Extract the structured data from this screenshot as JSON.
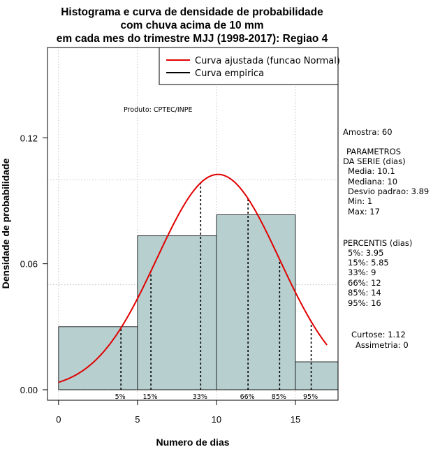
{
  "chart_data": {
    "type": "bar",
    "title_lines": [
      "Histograma e curva de densidade de probabilidade",
      "com chuva acima de 10 mm",
      "em cada mes do trimestre MJJ (1998-2017): Regiao 4"
    ],
    "xlabel": "Numero de dias",
    "ylabel": "Densidade de probabilidade",
    "xlim": [
      -0.7,
      17.7
    ],
    "ylim": [
      -0.005,
      0.163
    ],
    "x_ticks": [
      0,
      5,
      10,
      15
    ],
    "y_ticks": [
      0.0,
      0.06,
      0.12
    ],
    "y_tick_labels": [
      "0.00",
      "0.06",
      "0.12"
    ],
    "grid": true,
    "bars": [
      {
        "x0": 0,
        "x1": 5,
        "density": 0.03
      },
      {
        "x0": 5,
        "x1": 10,
        "density": 0.0733
      },
      {
        "x0": 10,
        "x1": 15,
        "density": 0.0833
      },
      {
        "x0": 15,
        "x1": 17.7,
        "density": 0.0133
      }
    ],
    "bar_color": "#b7cfcf",
    "fitted_curve": {
      "name": "Curva ajustada (funcao Normal)",
      "color": "#e00000",
      "mean": 10.1,
      "sd": 3.89,
      "x_range": [
        0,
        17
      ]
    },
    "legend": {
      "position": "top-right",
      "entries": [
        {
          "label": "Curva ajustada (funcao Normal)",
          "color": "#e00000"
        },
        {
          "label": "Curva empirica",
          "color": "#000000"
        }
      ]
    },
    "percentile_lines": [
      {
        "x": 3.95,
        "label": "5%"
      },
      {
        "x": 5.85,
        "label": "15%"
      },
      {
        "x": 9,
        "label": "33%"
      },
      {
        "x": 12,
        "label": "66%"
      },
      {
        "x": 14,
        "label": "85%"
      },
      {
        "x": 16,
        "label": "95%"
      }
    ],
    "annotation": "Produto: CPTEC/INPE"
  },
  "side_panel": {
    "amostra": "Amostra: 60",
    "param_title_1": "PARAMETROS",
    "param_title_2": "DA SERIE (dias)",
    "params": [
      "Media: 10.1",
      "Mediana: 10",
      "Desvio padrao: 3.89",
      "Min: 1",
      "Max: 17"
    ],
    "percentis_title": "PERCENTIS (dias)",
    "percentis": [
      "5%: 3.95",
      "15%: 5.85",
      "33%: 9",
      "66%: 12",
      "85%: 14",
      "95%: 16"
    ],
    "curtose": "Curtose: 1.12",
    "assimetria": "Assimetria: 0"
  }
}
